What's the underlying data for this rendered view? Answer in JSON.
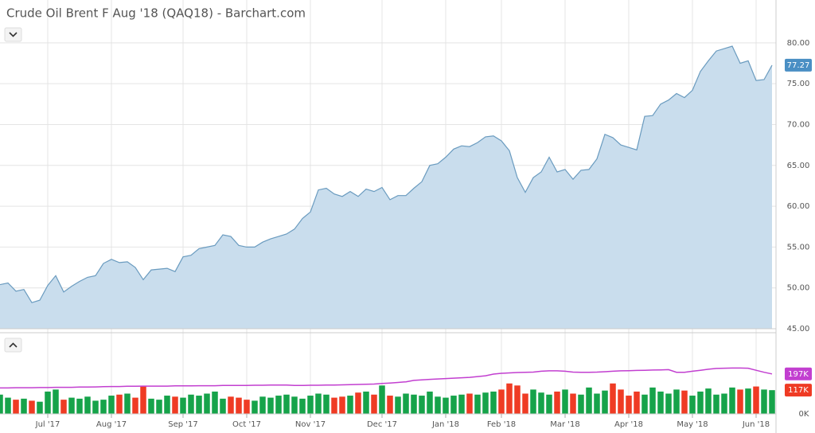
{
  "chart_data": [
    {
      "type": "area",
      "title": "Crude Oil Brent F Aug '18 (QAQ18) - Barchart.com",
      "color": "#6a9bbf",
      "fill": "#c9dded",
      "values": [
        50.4,
        50.6,
        49.6,
        49.8,
        48.2,
        48.5,
        50.3,
        51.5,
        49.5,
        50.2,
        50.8,
        51.3,
        51.5,
        53,
        53.5,
        53.1,
        53.2,
        52.5,
        51,
        52.2,
        52.3,
        52.4,
        52,
        53.8,
        54,
        54.8,
        55,
        55.2,
        56.5,
        56.3,
        55.2,
        55,
        55,
        55.6,
        56,
        56.3,
        56.6,
        57.2,
        58.5,
        59.3,
        62,
        62.2,
        61.5,
        61.2,
        61.8,
        61.2,
        62.1,
        61.8,
        62.3,
        60.8,
        61.3,
        61.3,
        62.2,
        63,
        65,
        65.2,
        66,
        67,
        67.4,
        67.3,
        67.8,
        68.5,
        68.6,
        68,
        66.8,
        63.5,
        61.7,
        63.5,
        64.2,
        66,
        64.2,
        64.5,
        63.3,
        64.4,
        64.5,
        65.8,
        68.8,
        68.4,
        67.5,
        67.2,
        66.9,
        71,
        71.1,
        72.5,
        73,
        73.8,
        73.3,
        74.2,
        76.5,
        77.8,
        79,
        79.3,
        79.6,
        77.5,
        77.8,
        75.4,
        75.5,
        77.27
      ],
      "ylim": [
        45,
        85.25
      ],
      "yticks": [
        {
          "value": 45,
          "label": "45.00"
        },
        {
          "value": 50,
          "label": "50.00"
        },
        {
          "value": 55,
          "label": "55.00"
        },
        {
          "value": 60,
          "label": "60.00"
        },
        {
          "value": 65,
          "label": "65.00"
        },
        {
          "value": 70,
          "label": "70.00"
        },
        {
          "value": 75,
          "label": "75.00"
        },
        {
          "value": 80,
          "label": "80.00"
        }
      ],
      "label_color": "#4a8fc4",
      "grid": true
    },
    {
      "type": "bar",
      "up_color": "#16a34a",
      "down_color": "#ef3b24",
      "categories": [
        null,
        null,
        null,
        null,
        null,
        null,
        "Jul '17",
        null,
        null,
        null,
        null,
        null,
        null,
        null,
        "Aug '17",
        null,
        null,
        null,
        null,
        null,
        null,
        null,
        null,
        "Sep '17",
        null,
        null,
        null,
        null,
        null,
        null,
        null,
        "Oct '17",
        null,
        null,
        null,
        null,
        null,
        null,
        null,
        "Nov '17",
        null,
        null,
        null,
        null,
        null,
        null,
        null,
        null,
        "Dec '17",
        null,
        null,
        null,
        null,
        null,
        null,
        null,
        "Jan '18",
        null,
        null,
        null,
        null,
        null,
        null,
        "Feb '18",
        null,
        null,
        null,
        null,
        null,
        null,
        null,
        "Mar '18",
        null,
        null,
        null,
        null,
        null,
        null,
        null,
        "Apr '18",
        null,
        null,
        null,
        null,
        null,
        null,
        null,
        "May '18",
        null,
        null,
        null,
        null,
        null,
        null,
        null,
        "Jun '18",
        null,
        null
      ],
      "series": [
        {
          "type": "bar",
          "color": "#ef3b24",
          "values": [
            95,
            80,
            70,
            75,
            65,
            60,
            110,
            120,
            70,
            80,
            75,
            85,
            65,
            70,
            90,
            95,
            100,
            80,
            135,
            75,
            70,
            90,
            85,
            80,
            95,
            90,
            100,
            110,
            75,
            85,
            80,
            70,
            65,
            85,
            80,
            90,
            95,
            85,
            75,
            90,
            100,
            95,
            80,
            85,
            90,
            105,
            110,
            95,
            140,
            90,
            85,
            100,
            95,
            90,
            110,
            85,
            80,
            90,
            95,
            100,
            95,
            105,
            110,
            120,
            150,
            140,
            100,
            120,
            105,
            95,
            110,
            120,
            100,
            95,
            130,
            100,
            115,
            150,
            120,
            90,
            110,
            95,
            130,
            110,
            100,
            120,
            115,
            90,
            110,
            125,
            95,
            100,
            130,
            120,
            125,
            135,
            120,
            117
          ],
          "value_labels": [
            null,
            null,
            null,
            null,
            null,
            null,
            null,
            null,
            null,
            null,
            null,
            null,
            null,
            null,
            null,
            null,
            null,
            null,
            null,
            null,
            null,
            null,
            null,
            null,
            null,
            null,
            null,
            null,
            null,
            null,
            null,
            null,
            null,
            null,
            null,
            null,
            null,
            null,
            null,
            null,
            null,
            null,
            null,
            null,
            null,
            null,
            null,
            null,
            null,
            null,
            null,
            null,
            null,
            null,
            null,
            null,
            null,
            null,
            null,
            null,
            null,
            null,
            null,
            null,
            null,
            null,
            null,
            null,
            null,
            null,
            null,
            null,
            null,
            null,
            null,
            null,
            null,
            null,
            null,
            null,
            null,
            null,
            null,
            null,
            null,
            null,
            null,
            null,
            null,
            null,
            null,
            null,
            null,
            null,
            null,
            null,
            null,
            "117K"
          ]
        },
        {
          "type": "line",
          "color": "#c23fd0",
          "values": [
            128,
            128,
            129,
            129,
            129,
            130,
            130,
            131,
            131,
            131,
            132,
            132,
            133,
            134,
            135,
            135,
            136,
            136,
            137,
            137,
            137,
            137,
            138,
            138,
            138,
            139,
            139,
            139,
            140,
            140,
            140,
            140,
            141,
            141,
            142,
            142,
            142,
            140,
            140,
            141,
            141,
            142,
            142,
            143,
            144,
            145,
            146,
            147,
            150,
            152,
            155,
            158,
            165,
            168,
            170,
            172,
            174,
            176,
            178,
            180,
            184,
            188,
            196,
            200,
            202,
            204,
            205,
            206,
            210,
            212,
            212,
            210,
            206,
            205,
            205,
            206,
            208,
            210,
            212,
            213,
            214,
            215,
            216,
            217,
            218,
            205,
            205,
            210,
            215,
            220,
            224,
            225,
            226,
            226,
            225,
            215,
            205,
            197
          ],
          "value_labels": [
            null,
            null,
            null,
            null,
            null,
            null,
            null,
            null,
            null,
            null,
            null,
            null,
            null,
            null,
            null,
            null,
            null,
            null,
            null,
            null,
            null,
            null,
            null,
            null,
            null,
            null,
            null,
            null,
            null,
            null,
            null,
            null,
            null,
            null,
            null,
            null,
            null,
            null,
            null,
            null,
            null,
            null,
            null,
            null,
            null,
            null,
            null,
            null,
            null,
            null,
            null,
            null,
            null,
            null,
            null,
            null,
            null,
            null,
            null,
            null,
            null,
            null,
            null,
            null,
            null,
            null,
            null,
            null,
            null,
            null,
            null,
            null,
            null,
            null,
            null,
            null,
            null,
            null,
            null,
            null,
            null,
            null,
            null,
            null,
            null,
            null,
            null,
            null,
            null,
            null,
            null,
            null,
            null,
            null,
            null,
            null,
            null,
            "197K"
          ]
        }
      ],
      "ylim": [
        0,
        400
      ],
      "yticks": [
        {
          "value": 0,
          "label": "0K"
        }
      ]
    }
  ]
}
